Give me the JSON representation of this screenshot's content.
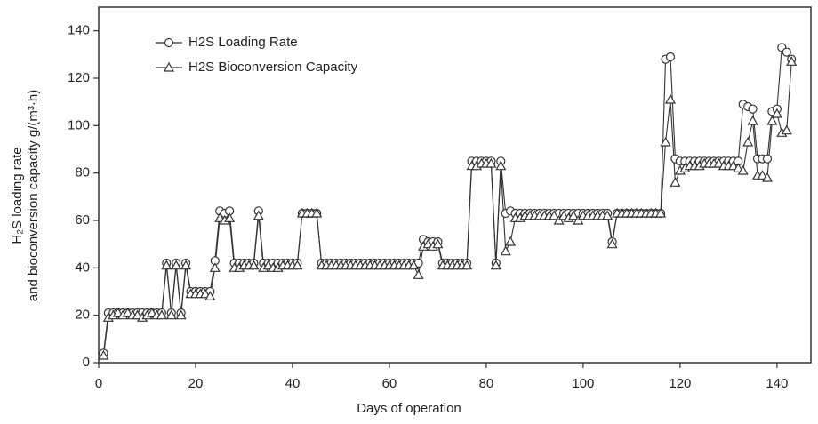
{
  "chart_data": {
    "type": "line",
    "y_label_lines": [
      "H₂S loading rate",
      "and bioconversion capacity g/(m³·h)"
    ],
    "x_label": "Days of operation",
    "xlim": [
      0,
      147
    ],
    "xticks": [
      0,
      20,
      40,
      60,
      80,
      100,
      120,
      140
    ],
    "ylim": [
      0,
      150
    ],
    "yticks": [
      0,
      20,
      40,
      60,
      80,
      100,
      120,
      140
    ],
    "legend": "upper left",
    "x": [
      1,
      2,
      3,
      4,
      5,
      6,
      7,
      8,
      9,
      10,
      11,
      12,
      13,
      14,
      15,
      16,
      17,
      18,
      19,
      20,
      21,
      22,
      23,
      24,
      25,
      26,
      27,
      28,
      29,
      30,
      31,
      32,
      33,
      34,
      35,
      36,
      37,
      38,
      39,
      40,
      41,
      42,
      43,
      44,
      45,
      46,
      47,
      48,
      49,
      50,
      51,
      52,
      53,
      54,
      55,
      56,
      57,
      58,
      59,
      60,
      61,
      62,
      63,
      64,
      65,
      66,
      67,
      68,
      69,
      70,
      71,
      72,
      73,
      74,
      75,
      76,
      77,
      78,
      79,
      80,
      81,
      82,
      83,
      84,
      85,
      86,
      87,
      88,
      89,
      90,
      91,
      92,
      93,
      94,
      95,
      96,
      97,
      98,
      99,
      100,
      101,
      102,
      103,
      104,
      105,
      106,
      107,
      108,
      109,
      110,
      111,
      112,
      113,
      114,
      115,
      116,
      117,
      118,
      119,
      120,
      121,
      122,
      123,
      124,
      125,
      126,
      127,
      128,
      129,
      130,
      131,
      132,
      133,
      134,
      135,
      136,
      137,
      138,
      139,
      140,
      141,
      142,
      143
    ],
    "series": [
      {
        "name": "H2S Loading Rate",
        "color": "#333333",
        "marker": "circle",
        "values": [
          4,
          21,
          21,
          21,
          21,
          21,
          21,
          21,
          21,
          21,
          21,
          21,
          21,
          42,
          21,
          42,
          21,
          42,
          30,
          30,
          30,
          30,
          30,
          43,
          64,
          63,
          64,
          42,
          42,
          42,
          42,
          42,
          64,
          42,
          42,
          42,
          42,
          42,
          42,
          42,
          42,
          63,
          63,
          63,
          63,
          42,
          42,
          42,
          42,
          42,
          42,
          42,
          42,
          42,
          42,
          42,
          42,
          42,
          42,
          42,
          42,
          42,
          42,
          42,
          42,
          42,
          52,
          51,
          51,
          51,
          42,
          42,
          42,
          42,
          42,
          42,
          85,
          85,
          85,
          85,
          85,
          42,
          85,
          63,
          64,
          63,
          63,
          63,
          63,
          63,
          63,
          63,
          63,
          63,
          63,
          63,
          63,
          63,
          63,
          63,
          63,
          63,
          63,
          63,
          63,
          51,
          63,
          63,
          63,
          63,
          63,
          63,
          63,
          63,
          63,
          63,
          128,
          129,
          86,
          85,
          85,
          85,
          85,
          85,
          85,
          85,
          85,
          85,
          85,
          85,
          85,
          85,
          109,
          108,
          107,
          86,
          86,
          86,
          106,
          107,
          133,
          131,
          128
        ]
      },
      {
        "name": "H2S Bioconversion Capacity",
        "color": "#333333",
        "marker": "triangle",
        "values": [
          3,
          19,
          20,
          21,
          20,
          21,
          20,
          20,
          19,
          20,
          21,
          20,
          20,
          41,
          20,
          41,
          20,
          41,
          29,
          29,
          29,
          29,
          28,
          40,
          61,
          60,
          61,
          40,
          40,
          41,
          41,
          41,
          62,
          40,
          41,
          40,
          40,
          41,
          41,
          41,
          41,
          63,
          63,
          63,
          63,
          41,
          41,
          41,
          41,
          41,
          41,
          41,
          41,
          41,
          41,
          41,
          41,
          41,
          41,
          41,
          41,
          41,
          41,
          41,
          41,
          37,
          49,
          50,
          49,
          50,
          41,
          41,
          41,
          41,
          41,
          41,
          83,
          83,
          84,
          84,
          84,
          41,
          83,
          47,
          51,
          61,
          61,
          62,
          62,
          62,
          62,
          62,
          62,
          62,
          60,
          62,
          61,
          62,
          60,
          62,
          62,
          62,
          62,
          62,
          62,
          50,
          63,
          63,
          63,
          63,
          63,
          63,
          63,
          63,
          63,
          63,
          93,
          111,
          76,
          81,
          82,
          83,
          83,
          83,
          84,
          84,
          84,
          84,
          83,
          83,
          83,
          82,
          81,
          93,
          102,
          79,
          79,
          78,
          102,
          105,
          97,
          98,
          127
        ]
      }
    ]
  }
}
